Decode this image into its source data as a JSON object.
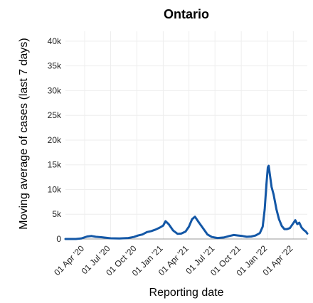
{
  "chart_data": {
    "type": "line",
    "title": "Ontario",
    "xlabel": "Reporting date",
    "ylabel": "Moving average of cases (last 7 days)",
    "grid": true,
    "ylim": [
      0,
      42000
    ],
    "y_ticks": [
      0,
      5000,
      10000,
      15000,
      20000,
      25000,
      30000,
      35000,
      40000
    ],
    "y_tick_labels": [
      "0",
      "5k",
      "10k",
      "15k",
      "20k",
      "25k",
      "30k",
      "35k",
      "40k"
    ],
    "xlim": [
      "2020-01-25",
      "2022-05-20"
    ],
    "x_ticks": [
      "2020-04-01",
      "2020-07-01",
      "2020-10-01",
      "2021-01-01",
      "2021-04-01",
      "2021-07-01",
      "2021-10-01",
      "2022-01-01",
      "2022-04-01"
    ],
    "x_tick_labels": [
      "01 Apr '20",
      "01 Jul '20",
      "01 Oct '20",
      "01 Jan '21",
      "01 Apr '21",
      "01 Jul '21",
      "01 Oct '21",
      "01 Jan '22",
      "01 Apr '22"
    ],
    "series": [
      {
        "color": "#1357a6",
        "x": [
          "2020-01-25",
          "2020-03-01",
          "2020-03-20",
          "2020-04-10",
          "2020-04-25",
          "2020-05-10",
          "2020-06-01",
          "2020-07-01",
          "2020-08-01",
          "2020-09-01",
          "2020-09-20",
          "2020-10-05",
          "2020-10-20",
          "2020-11-05",
          "2020-11-20",
          "2020-12-05",
          "2020-12-20",
          "2021-01-01",
          "2021-01-09",
          "2021-01-20",
          "2021-02-05",
          "2021-02-20",
          "2021-03-05",
          "2021-03-20",
          "2021-04-01",
          "2021-04-12",
          "2021-04-22",
          "2021-05-05",
          "2021-05-20",
          "2021-06-05",
          "2021-06-20",
          "2021-07-10",
          "2021-08-01",
          "2021-08-20",
          "2021-09-05",
          "2021-09-20",
          "2021-10-05",
          "2021-10-20",
          "2021-11-05",
          "2021-11-20",
          "2021-12-05",
          "2021-12-15",
          "2021-12-22",
          "2021-12-28",
          "2022-01-02",
          "2022-01-05",
          "2022-01-09",
          "2022-01-15",
          "2022-01-22",
          "2022-02-01",
          "2022-02-10",
          "2022-02-20",
          "2022-03-01",
          "2022-03-10",
          "2022-03-20",
          "2022-04-01",
          "2022-04-08",
          "2022-04-15",
          "2022-04-22",
          "2022-04-30",
          "2022-05-08",
          "2022-05-15",
          "2022-05-20"
        ],
        "y": [
          0,
          0,
          100,
          500,
          600,
          450,
          350,
          150,
          100,
          200,
          400,
          700,
          900,
          1400,
          1600,
          1900,
          2300,
          2700,
          3600,
          3000,
          1700,
          1050,
          1100,
          1500,
          2500,
          4000,
          4500,
          3400,
          2200,
          900,
          400,
          200,
          300,
          600,
          800,
          700,
          600,
          450,
          500,
          700,
          1200,
          2500,
          6000,
          11000,
          14500,
          14800,
          13000,
          10500,
          9000,
          6000,
          4000,
          2600,
          2000,
          2000,
          2200,
          3200,
          3800,
          3000,
          3300,
          2300,
          1800,
          1500,
          1100
        ]
      }
    ]
  }
}
